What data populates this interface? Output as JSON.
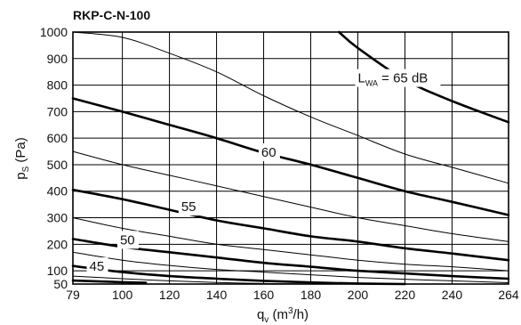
{
  "chart_data": {
    "type": "line",
    "title": "RKP-C-N-100",
    "xlabel": {
      "main": "q",
      "sub": "v",
      "unit": "(m",
      "sup": "3",
      "unit_end": "/h)"
    },
    "ylabel": {
      "main": "p",
      "sub": "S",
      "unit": "(Pa)"
    },
    "xlim": [
      79,
      264
    ],
    "ylim": [
      50,
      1000
    ],
    "x_ticks": [
      79,
      100,
      120,
      140,
      160,
      180,
      200,
      220,
      240,
      264
    ],
    "y_ticks": [
      50,
      100,
      200,
      300,
      400,
      500,
      600,
      700,
      800,
      900,
      1000
    ],
    "grid": true,
    "series": [
      {
        "name": "65",
        "x": [
          192,
          200,
          220,
          240,
          264
        ],
        "y": [
          1000,
          940,
          820,
          740,
          660
        ],
        "weight": "thick"
      },
      {
        "name": "",
        "x": [
          79,
          100,
          120,
          140,
          160,
          180,
          200,
          220,
          240,
          264
        ],
        "y": [
          1000,
          980,
          920,
          850,
          760,
          680,
          610,
          540,
          490,
          430
        ],
        "weight": "thin"
      },
      {
        "name": "60",
        "x": [
          79,
          100,
          120,
          140,
          160,
          180,
          200,
          220,
          240,
          264
        ],
        "y": [
          750,
          700,
          650,
          600,
          545,
          500,
          450,
          400,
          360,
          310
        ],
        "weight": "thick"
      },
      {
        "name": "",
        "x": [
          79,
          100,
          120,
          140,
          160,
          180,
          200,
          220,
          240,
          264
        ],
        "y": [
          550,
          500,
          460,
          420,
          380,
          340,
          300,
          270,
          240,
          210
        ],
        "weight": "thin"
      },
      {
        "name": "55",
        "x": [
          79,
          100,
          120,
          140,
          160,
          180,
          200,
          220,
          240,
          264
        ],
        "y": [
          405,
          370,
          330,
          290,
          260,
          230,
          210,
          185,
          165,
          140
        ],
        "weight": "thick"
      },
      {
        "name": "",
        "x": [
          79,
          100,
          120,
          140,
          160,
          180,
          200,
          220,
          240,
          264
        ],
        "y": [
          300,
          260,
          230,
          200,
          180,
          160,
          140,
          125,
          115,
          100
        ],
        "weight": "thin"
      },
      {
        "name": "50",
        "x": [
          79,
          100,
          120,
          140,
          160,
          180,
          200,
          220,
          240,
          264
        ],
        "y": [
          220,
          190,
          170,
          150,
          130,
          115,
          100,
          90,
          80,
          70
        ],
        "weight": "thick"
      },
      {
        "name": "",
        "x": [
          79,
          100,
          120,
          140,
          160,
          180,
          200,
          220,
          240,
          264
        ],
        "y": [
          170,
          140,
          120,
          105,
          95,
          85,
          75,
          68,
          62,
          55
        ],
        "weight": "thin"
      },
      {
        "name": "45",
        "x": [
          79,
          100,
          120,
          140,
          160,
          180,
          200,
          220
        ],
        "y": [
          118,
          95,
          80,
          70,
          62,
          56,
          52,
          50
        ],
        "weight": "thick"
      },
      {
        "name": "",
        "x": [
          79,
          100,
          120,
          140,
          160,
          180
        ],
        "y": [
          80,
          70,
          62,
          56,
          52,
          50
        ],
        "weight": "thin"
      },
      {
        "name": "",
        "x": [
          79,
          100,
          110
        ],
        "y": [
          63,
          57,
          55
        ],
        "weight": "thick"
      }
    ],
    "annotations": [
      {
        "text": "L",
        "sub": "WA",
        "rest": " = 65 dB",
        "x": 200,
        "y": 810
      },
      {
        "text": "60",
        "x": 159,
        "y": 530
      },
      {
        "text": "55",
        "x": 125,
        "y": 325
      },
      {
        "text": "50",
        "x": 99,
        "y": 200
      },
      {
        "text": "45",
        "x": 86,
        "y": 100
      }
    ]
  }
}
